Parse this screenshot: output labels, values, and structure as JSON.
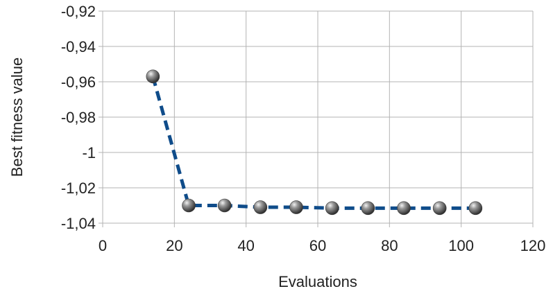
{
  "chart_data": {
    "type": "line",
    "title": "",
    "xlabel": "Evaluations",
    "ylabel": "Best fitness value",
    "xlim": [
      0,
      120
    ],
    "ylim": [
      -1.04,
      -0.92
    ],
    "x_ticks": [
      0,
      20,
      40,
      60,
      80,
      100,
      120
    ],
    "x_tick_labels": [
      "0",
      "20",
      "40",
      "60",
      "80",
      "100",
      "120"
    ],
    "y_ticks": [
      -0.92,
      -0.94,
      -0.96,
      -0.98,
      -1.0,
      -1.02,
      -1.04
    ],
    "y_tick_labels": [
      "-0,92",
      "-0,94",
      "-0,96",
      "-0,98",
      "-1",
      "-1,02",
      "-1,04"
    ],
    "grid": true,
    "legend": "none",
    "series": [
      {
        "x": [
          14,
          24,
          34,
          44,
          54,
          64,
          74,
          84,
          94,
          104
        ],
        "y": [
          -0.957,
          -1.03,
          -1.03,
          -1.031,
          -1.031,
          -1.0315,
          -1.0315,
          -1.0315,
          -1.0315,
          -1.0315
        ],
        "line_style": "dashed",
        "line_color": "#0f4c8a",
        "marker_color": "#555555"
      }
    ]
  }
}
